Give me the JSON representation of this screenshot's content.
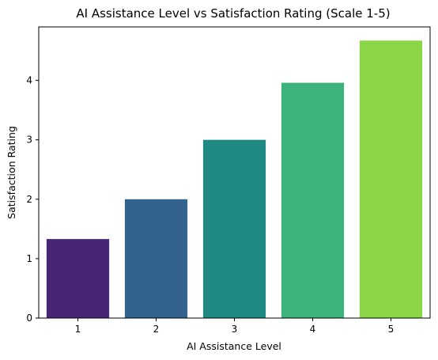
{
  "chart_data": {
    "type": "bar",
    "title": "AI Assistance Level vs Satisfaction Rating (Scale 1-5)",
    "xlabel": "AI Assistance Level",
    "ylabel": "Satisfaction Rating",
    "categories": [
      "1",
      "2",
      "3",
      "4",
      "5"
    ],
    "values": [
      1.33,
      2.0,
      3.0,
      3.96,
      4.67
    ],
    "colors": [
      "#482677",
      "#33638D",
      "#1F8A83",
      "#3CB37A",
      "#8BD647"
    ],
    "ylim": [
      0,
      4.9
    ],
    "yticks": [
      0,
      1,
      2,
      3,
      4
    ],
    "grid": false,
    "legend": "none"
  }
}
